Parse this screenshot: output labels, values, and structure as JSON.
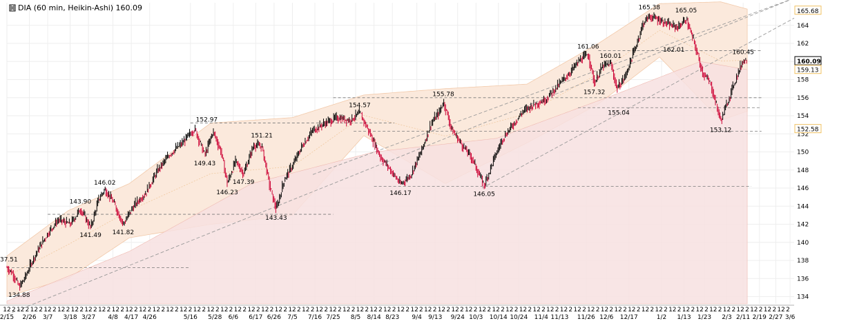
{
  "header": {
    "symbol_icon": "ohlc-bars-icon",
    "title": "DIA (60 min, Heikin-Ashi) 160.09"
  },
  "colors": {
    "up": "#000000",
    "down": "#cc0033",
    "envelope_outer": "#fbe9dc",
    "envelope_inner": "#f6d6c8",
    "lower_fill": "#f7e1e1",
    "grid": "#eeeeee",
    "trendline": "#999999",
    "price_box": "#f0c060"
  },
  "chart_data": {
    "type": "candlestick",
    "title": "DIA (60 min, Heikin-Ashi) 160.09",
    "ylim": [
      133.2,
      166.5
    ],
    "y_ticks": [
      134,
      136,
      138,
      140,
      142,
      144,
      146,
      148,
      150,
      152,
      154,
      156,
      158,
      160,
      162,
      164
    ],
    "x_range_days": [
      0,
      386
    ],
    "date_labels": [
      {
        "label": "2/15",
        "day": 0
      },
      {
        "label": "2/26",
        "day": 11
      },
      {
        "label": "3/7",
        "day": 20
      },
      {
        "label": "3/18",
        "day": 31
      },
      {
        "label": "3/27",
        "day": 40
      },
      {
        "label": "4/8",
        "day": 52
      },
      {
        "label": "4/17",
        "day": 61
      },
      {
        "label": "4/26",
        "day": 70
      },
      {
        "label": "5/16",
        "day": 90
      },
      {
        "label": "5/28",
        "day": 102
      },
      {
        "label": "6/6",
        "day": 111
      },
      {
        "label": "6/17",
        "day": 122
      },
      {
        "label": "6/26",
        "day": 131
      },
      {
        "label": "7/5",
        "day": 140
      },
      {
        "label": "7/16",
        "day": 151
      },
      {
        "label": "7/25",
        "day": 160
      },
      {
        "label": "8/5",
        "day": 171
      },
      {
        "label": "8/14",
        "day": 180
      },
      {
        "label": "8/23",
        "day": 189
      },
      {
        "label": "9/4",
        "day": 201
      },
      {
        "label": "9/13",
        "day": 210
      },
      {
        "label": "9/24",
        "day": 221
      },
      {
        "label": "10/3",
        "day": 230
      },
      {
        "label": "10/14",
        "day": 241
      },
      {
        "label": "10/24",
        "day": 251
      },
      {
        "label": "11/4",
        "day": 262
      },
      {
        "label": "11/13",
        "day": 271
      },
      {
        "label": "11/26",
        "day": 284
      },
      {
        "label": "12/6",
        "day": 294
      },
      {
        "label": "12/17",
        "day": 305
      },
      {
        "label": "1/2",
        "day": 321
      },
      {
        "label": "1/13",
        "day": 332
      },
      {
        "label": "1/23",
        "day": 342
      },
      {
        "label": "2/3",
        "day": 353
      },
      {
        "label": "2/11",
        "day": 361
      },
      {
        "label": "2/19",
        "day": 369
      },
      {
        "label": "2/27",
        "day": 377
      },
      {
        "label": "3/6",
        "day": 384
      }
    ],
    "hour_tick_labels": [
      "12",
      "2"
    ],
    "last_price": 160.09,
    "price_boxes": [
      {
        "value": 165.68,
        "label": "165.68",
        "style": "plain"
      },
      {
        "value": 160.09,
        "label": "160.09",
        "style": "bold"
      },
      {
        "value": 159.13,
        "label": "159.13",
        "style": "plain"
      },
      {
        "value": 152.58,
        "label": "152.58",
        "style": "plain"
      }
    ],
    "annotations": [
      {
        "label": "137.51",
        "day": 0,
        "value": 137.51,
        "pos": "above"
      },
      {
        "label": "134.88",
        "day": 6,
        "value": 134.88,
        "pos": "below"
      },
      {
        "label": "143.90",
        "day": 36,
        "value": 143.9,
        "pos": "above"
      },
      {
        "label": "141.49",
        "day": 41,
        "value": 141.49,
        "pos": "below"
      },
      {
        "label": "146.02",
        "day": 48,
        "value": 146.02,
        "pos": "above"
      },
      {
        "label": "141.82",
        "day": 57,
        "value": 141.82,
        "pos": "below"
      },
      {
        "label": "152.97",
        "day": 98,
        "value": 152.97,
        "pos": "above"
      },
      {
        "label": "149.43",
        "day": 97,
        "value": 149.43,
        "pos": "below"
      },
      {
        "label": "146.23",
        "day": 108,
        "value": 146.23,
        "pos": "below"
      },
      {
        "label": "147.39",
        "day": 116,
        "value": 147.39,
        "pos": "below"
      },
      {
        "label": "151.21",
        "day": 125,
        "value": 151.21,
        "pos": "above"
      },
      {
        "label": "143.43",
        "day": 132,
        "value": 143.43,
        "pos": "below"
      },
      {
        "label": "154.57",
        "day": 173,
        "value": 154.57,
        "pos": "above"
      },
      {
        "label": "146.17",
        "day": 193,
        "value": 146.17,
        "pos": "below"
      },
      {
        "label": "155.78",
        "day": 214,
        "value": 155.78,
        "pos": "above"
      },
      {
        "label": "146.05",
        "day": 234,
        "value": 146.05,
        "pos": "below"
      },
      {
        "label": "161.06",
        "day": 285,
        "value": 161.06,
        "pos": "above"
      },
      {
        "label": "157.32",
        "day": 288,
        "value": 157.32,
        "pos": "below"
      },
      {
        "label": "160.01",
        "day": 296,
        "value": 160.01,
        "pos": "above"
      },
      {
        "label": "155.04",
        "day": 300,
        "value": 155.04,
        "pos": "below"
      },
      {
        "label": "165.38",
        "day": 315,
        "value": 165.38,
        "pos": "above"
      },
      {
        "label": "165.05",
        "day": 333,
        "value": 165.05,
        "pos": "above"
      },
      {
        "label": "162.01",
        "day": 327,
        "value": 162.01,
        "pos": "below"
      },
      {
        "label": "153.12",
        "day": 350,
        "value": 153.12,
        "pos": "below"
      },
      {
        "label": "160.45",
        "day": 361,
        "value": 160.45,
        "pos": "above"
      }
    ],
    "horizontal_levels": [
      {
        "value": 137.2,
        "day_start": 0,
        "day_end": 90
      },
      {
        "value": 143.1,
        "day_start": 20,
        "day_end": 160
      },
      {
        "value": 153.2,
        "day_start": 90,
        "day_end": 190
      },
      {
        "value": 152.3,
        "day_start": 170,
        "day_end": 370
      },
      {
        "value": 146.2,
        "day_start": 180,
        "day_end": 365
      },
      {
        "value": 156.0,
        "day_start": 160,
        "day_end": 370
      },
      {
        "value": 154.9,
        "day_start": 280,
        "day_end": 370
      },
      {
        "value": 161.2,
        "day_start": 290,
        "day_end": 370
      }
    ],
    "trendlines": [
      {
        "day_start": 0,
        "value_start": 132.0,
        "day_end": 386,
        "value_end": 167.0
      },
      {
        "day_start": 150,
        "value_start": 147.5,
        "day_end": 386,
        "value_end": 167.0
      },
      {
        "day_start": 233,
        "value_start": 146.0,
        "day_end": 386,
        "value_end": 164.8
      }
    ],
    "price_path": [
      {
        "day": 0,
        "value": 137.2
      },
      {
        "day": 3,
        "value": 136.5
      },
      {
        "day": 6,
        "value": 135.0
      },
      {
        "day": 9,
        "value": 136.2
      },
      {
        "day": 12,
        "value": 137.8
      },
      {
        "day": 16,
        "value": 139.5
      },
      {
        "day": 20,
        "value": 141.0
      },
      {
        "day": 25,
        "value": 142.5
      },
      {
        "day": 31,
        "value": 142.0
      },
      {
        "day": 36,
        "value": 143.7
      },
      {
        "day": 41,
        "value": 141.6
      },
      {
        "day": 45,
        "value": 144.8
      },
      {
        "day": 48,
        "value": 145.9
      },
      {
        "day": 52,
        "value": 144.5
      },
      {
        "day": 57,
        "value": 142.0
      },
      {
        "day": 62,
        "value": 144.0
      },
      {
        "day": 68,
        "value": 145.5
      },
      {
        "day": 74,
        "value": 148.0
      },
      {
        "day": 80,
        "value": 149.8
      },
      {
        "day": 86,
        "value": 151.0
      },
      {
        "day": 92,
        "value": 152.6
      },
      {
        "day": 97,
        "value": 149.6
      },
      {
        "day": 101,
        "value": 152.3
      },
      {
        "day": 105,
        "value": 150.0
      },
      {
        "day": 108,
        "value": 146.5
      },
      {
        "day": 112,
        "value": 149.0
      },
      {
        "day": 116,
        "value": 147.6
      },
      {
        "day": 121,
        "value": 150.8
      },
      {
        "day": 125,
        "value": 150.6
      },
      {
        "day": 129,
        "value": 146.0
      },
      {
        "day": 132,
        "value": 143.6
      },
      {
        "day": 136,
        "value": 147.0
      },
      {
        "day": 140,
        "value": 148.5
      },
      {
        "day": 145,
        "value": 150.8
      },
      {
        "day": 150,
        "value": 152.4
      },
      {
        "day": 156,
        "value": 153.2
      },
      {
        "day": 162,
        "value": 153.8
      },
      {
        "day": 168,
        "value": 153.5
      },
      {
        "day": 173,
        "value": 154.3
      },
      {
        "day": 178,
        "value": 152.0
      },
      {
        "day": 183,
        "value": 149.5
      },
      {
        "day": 188,
        "value": 148.0
      },
      {
        "day": 193,
        "value": 146.4
      },
      {
        "day": 198,
        "value": 147.5
      },
      {
        "day": 203,
        "value": 150.0
      },
      {
        "day": 208,
        "value": 153.2
      },
      {
        "day": 212,
        "value": 154.4
      },
      {
        "day": 214,
        "value": 155.6
      },
      {
        "day": 218,
        "value": 152.5
      },
      {
        "day": 223,
        "value": 150.8
      },
      {
        "day": 228,
        "value": 149.3
      },
      {
        "day": 232,
        "value": 147.2
      },
      {
        "day": 234,
        "value": 146.3
      },
      {
        "day": 238,
        "value": 148.8
      },
      {
        "day": 243,
        "value": 151.5
      },
      {
        "day": 248,
        "value": 153.0
      },
      {
        "day": 253,
        "value": 154.5
      },
      {
        "day": 258,
        "value": 155.2
      },
      {
        "day": 264,
        "value": 155.8
      },
      {
        "day": 270,
        "value": 157.3
      },
      {
        "day": 276,
        "value": 158.8
      },
      {
        "day": 281,
        "value": 160.2
      },
      {
        "day": 285,
        "value": 160.8
      },
      {
        "day": 288,
        "value": 157.6
      },
      {
        "day": 292,
        "value": 159.5
      },
      {
        "day": 296,
        "value": 159.8
      },
      {
        "day": 299,
        "value": 157.0
      },
      {
        "day": 303,
        "value": 158.3
      },
      {
        "day": 308,
        "value": 161.5
      },
      {
        "day": 312,
        "value": 164.3
      },
      {
        "day": 315,
        "value": 165.0
      },
      {
        "day": 320,
        "value": 164.6
      },
      {
        "day": 325,
        "value": 164.0
      },
      {
        "day": 329,
        "value": 163.8
      },
      {
        "day": 333,
        "value": 164.7
      },
      {
        "day": 337,
        "value": 162.0
      },
      {
        "day": 341,
        "value": 158.8
      },
      {
        "day": 345,
        "value": 157.5
      },
      {
        "day": 348,
        "value": 155.0
      },
      {
        "day": 350,
        "value": 153.4
      },
      {
        "day": 354,
        "value": 156.0
      },
      {
        "day": 358,
        "value": 158.5
      },
      {
        "day": 361,
        "value": 160.2
      },
      {
        "day": 363,
        "value": 160.1
      }
    ],
    "bands": {
      "outer_upper": [
        {
          "day": 0,
          "value": 138.5
        },
        {
          "day": 30,
          "value": 143.5
        },
        {
          "day": 60,
          "value": 146.5
        },
        {
          "day": 100,
          "value": 153.2
        },
        {
          "day": 140,
          "value": 153.8
        },
        {
          "day": 175,
          "value": 156.3
        },
        {
          "day": 215,
          "value": 157.0
        },
        {
          "day": 255,
          "value": 157.5
        },
        {
          "day": 290,
          "value": 162.0
        },
        {
          "day": 320,
          "value": 166.4
        },
        {
          "day": 350,
          "value": 166.6
        },
        {
          "day": 363,
          "value": 165.8
        }
      ],
      "outer_lower": [
        {
          "day": 0,
          "value": 134.0
        },
        {
          "day": 30,
          "value": 136.0
        },
        {
          "day": 60,
          "value": 140.5
        },
        {
          "day": 100,
          "value": 142.0
        },
        {
          "day": 140,
          "value": 143.0
        },
        {
          "day": 175,
          "value": 151.8
        },
        {
          "day": 215,
          "value": 146.5
        },
        {
          "day": 255,
          "value": 151.0
        },
        {
          "day": 290,
          "value": 155.3
        },
        {
          "day": 320,
          "value": 160.5
        },
        {
          "day": 350,
          "value": 153.5
        },
        {
          "day": 363,
          "value": 154.5
        }
      ],
      "lower_fill_top": [
        {
          "day": 0,
          "value": 133.5
        },
        {
          "day": 60,
          "value": 139.0
        },
        {
          "day": 120,
          "value": 146.5
        },
        {
          "day": 180,
          "value": 150.0
        },
        {
          "day": 240,
          "value": 151.5
        },
        {
          "day": 300,
          "value": 156.5
        },
        {
          "day": 340,
          "value": 160.0
        },
        {
          "day": 363,
          "value": 159.1
        }
      ]
    }
  }
}
